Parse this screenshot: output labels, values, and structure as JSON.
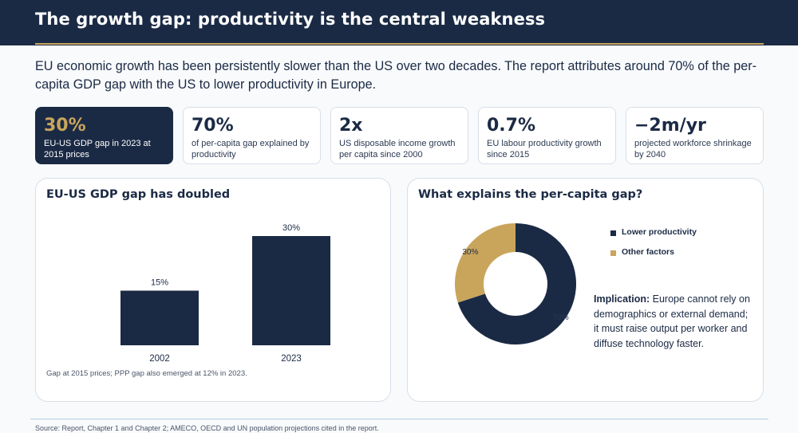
{
  "header": {
    "title": "The growth gap: productivity is the central weakness"
  },
  "intro": "EU economic growth has been persistently slower than the US over two decades. The report attributes around 70% of the per-capita GDP gap with the US to lower productivity in Europe.",
  "cards": [
    {
      "value": "30%",
      "label": "EU-US GDP gap in 2023 at 2015 prices"
    },
    {
      "value": "70%",
      "label": "of per-capita gap explained by productivity"
    },
    {
      "value": "2x",
      "label": "US disposable income growth per capita since 2000"
    },
    {
      "value": "0.7%",
      "label": "EU labour productivity growth since 2015"
    },
    {
      "value": "−2m/yr",
      "label": "projected workforce shrinkage by 2040"
    }
  ],
  "left_panel": {
    "title": "EU-US GDP gap has doubled",
    "note": "Gap at 2015 prices; PPP gap also emerged at 12% in 2023."
  },
  "right_panel": {
    "title": "What explains the per-capita gap?",
    "implication_label": "Implication:",
    "implication_text": " Europe cannot rely on demographics or external demand; it must raise output per worker and diffuse technology faster."
  },
  "source": "Source: Report, Chapter 1 and Chapter 2; AMECO, OECD and UN population projections cited in the report.",
  "colors": {
    "navy": "#1b2a44",
    "gold": "#c9a55c"
  },
  "chart_data": [
    {
      "type": "bar",
      "title": "EU-US GDP gap has doubled",
      "categories": [
        "2002",
        "2023"
      ],
      "values": [
        15,
        30
      ],
      "data_labels": [
        "15%",
        "30%"
      ],
      "ylim": [
        0,
        30
      ],
      "grid": false
    },
    {
      "type": "pie",
      "title": "What explains the per-capita gap?",
      "categories": [
        "Lower productivity",
        "Other factors"
      ],
      "values": [
        70,
        30
      ],
      "data_labels": [
        "70%",
        "30%"
      ],
      "colors": [
        "#1b2a44",
        "#c9a55c"
      ],
      "donut": true,
      "legend": "right"
    }
  ]
}
